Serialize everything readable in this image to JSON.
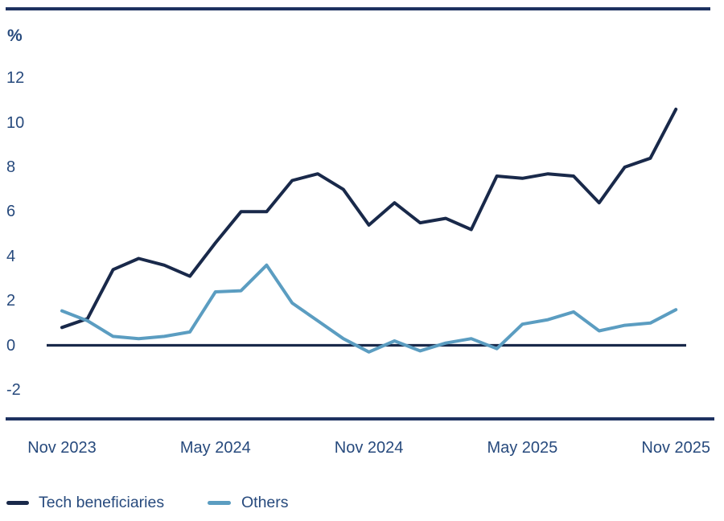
{
  "colors": {
    "frame_rule": "#1d3160",
    "axis_text": "#274a7d",
    "zero_line": "#19294a"
  },
  "chart_data": {
    "type": "line",
    "title": "",
    "unit_label": "%",
    "ylabel": "%",
    "xlabel": "",
    "grid": "zero-line-only",
    "legend_position": "bottom-left",
    "ylim": [
      -2,
      12
    ],
    "y_ticks": [
      12,
      10,
      8,
      6,
      4,
      2,
      0,
      -2
    ],
    "categories": [
      "Nov 2023",
      "Dec 2023",
      "Jan 2024",
      "Feb 2024",
      "Mar 2024",
      "Apr 2024",
      "May 2024",
      "Jun 2024",
      "Jul 2024",
      "Aug 2024",
      "Sep 2024",
      "Oct 2024",
      "Nov 2024",
      "Dec 2024",
      "Jan 2025",
      "Feb 2025",
      "Mar 2025",
      "Apr 2025",
      "May 2025",
      "Jun 2025",
      "Jul 2025",
      "Aug 2025",
      "Sep 2025",
      "Oct 2025",
      "Nov 2025"
    ],
    "x_tick_labels": [
      {
        "label": "Nov 2023",
        "index": 0
      },
      {
        "label": "May 2024",
        "index": 6
      },
      {
        "label": "Nov 2024",
        "index": 12
      },
      {
        "label": "May 2025",
        "index": 18
      },
      {
        "label": "Nov 2025",
        "index": 24
      }
    ],
    "series": [
      {
        "name": "Tech beneficiaries",
        "color": "#19294a",
        "values": [
          0.8,
          1.2,
          3.4,
          3.9,
          3.6,
          3.1,
          4.6,
          6.0,
          6.0,
          7.4,
          7.7,
          7.0,
          5.4,
          6.4,
          5.5,
          5.7,
          5.2,
          7.6,
          7.5,
          7.7,
          7.6,
          6.4,
          8.0,
          8.4,
          10.6
        ]
      },
      {
        "name": "Others",
        "color": "#5b9dc1",
        "values": [
          1.55,
          1.1,
          0.4,
          0.3,
          0.4,
          0.6,
          2.4,
          2.45,
          3.6,
          1.9,
          1.1,
          0.3,
          -0.3,
          0.2,
          -0.25,
          0.1,
          0.3,
          -0.15,
          0.95,
          1.15,
          1.5,
          0.65,
          0.9,
          1.0,
          1.6
        ]
      }
    ]
  }
}
